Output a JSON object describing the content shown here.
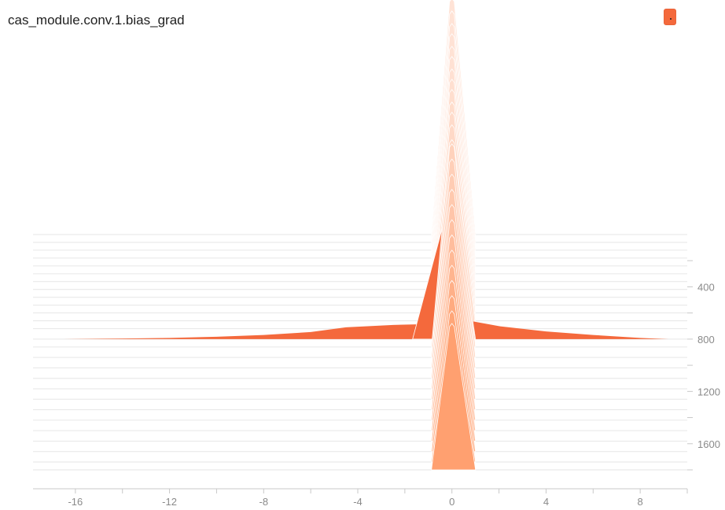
{
  "title": "cas_module.conv.1.bias_grad",
  "legend": {
    "label": "·",
    "color": "#F4693C"
  },
  "colors": {
    "newest": "#F4693C",
    "oldest": "#FFA070",
    "axis": "#c8c8c8",
    "tick_text": "#8a8a8a"
  },
  "chart_data": {
    "type": "histogram-offset",
    "title": "cas_module.conv.1.bias_grad",
    "x_ticks": [
      -16,
      -12,
      -8,
      -4,
      0,
      4,
      8
    ],
    "xlim": [
      -17.8,
      10
    ],
    "step_ticks": [
      400,
      800,
      1200,
      1600
    ],
    "step_range": [
      0,
      1800
    ],
    "grid": false,
    "series": [
      {
        "step": 0,
        "peak": 1.0,
        "tails": false
      },
      {
        "step": 60,
        "peak": 0.98,
        "tails": false
      },
      {
        "step": 120,
        "peak": 0.96,
        "tails": false
      },
      {
        "step": 180,
        "peak": 0.95,
        "tails": false
      },
      {
        "step": 240,
        "peak": 0.93,
        "tails": false
      },
      {
        "step": 300,
        "peak": 0.92,
        "tails": false
      },
      {
        "step": 360,
        "peak": 0.9,
        "tails": false
      },
      {
        "step": 420,
        "peak": 0.89,
        "tails": false
      },
      {
        "step": 480,
        "peak": 0.88,
        "tails": false
      },
      {
        "step": 540,
        "peak": 0.86,
        "tails": false
      },
      {
        "step": 600,
        "peak": 0.85,
        "tails": false
      },
      {
        "step": 660,
        "peak": 0.83,
        "tails": false
      },
      {
        "step": 720,
        "peak": 0.8,
        "tails": false
      },
      {
        "step": 800,
        "peak": 0.6,
        "tails": true
      },
      {
        "step": 860,
        "peak": 0.86,
        "tails": false
      },
      {
        "step": 940,
        "peak": 0.84,
        "tails": false
      },
      {
        "step": 1020,
        "peak": 0.82,
        "tails": false
      },
      {
        "step": 1100,
        "peak": 0.8,
        "tails": false
      },
      {
        "step": 1180,
        "peak": 0.78,
        "tails": false
      },
      {
        "step": 1260,
        "peak": 0.76,
        "tails": false
      },
      {
        "step": 1340,
        "peak": 0.74,
        "tails": false
      },
      {
        "step": 1420,
        "peak": 0.72,
        "tails": false
      },
      {
        "step": 1500,
        "peak": 0.7,
        "tails": false
      },
      {
        "step": 1580,
        "peak": 0.68,
        "tails": false
      },
      {
        "step": 1660,
        "peak": 0.66,
        "tails": false
      },
      {
        "step": 1740,
        "peak": 0.64,
        "tails": false
      },
      {
        "step": 1800,
        "peak": 0.62,
        "tails": false
      }
    ],
    "tail_profile": {
      "x": [
        -16.5,
        -14,
        -12,
        -10,
        -8,
        -6,
        -4.5,
        -2.5,
        -1.5,
        -0.8,
        0.9,
        2,
        4,
        6,
        8,
        9.2
      ],
      "rel": [
        0.0,
        0.01,
        0.02,
        0.04,
        0.07,
        0.12,
        0.2,
        0.24,
        0.25,
        0.27,
        0.3,
        0.22,
        0.13,
        0.07,
        0.02,
        0.0
      ]
    }
  }
}
